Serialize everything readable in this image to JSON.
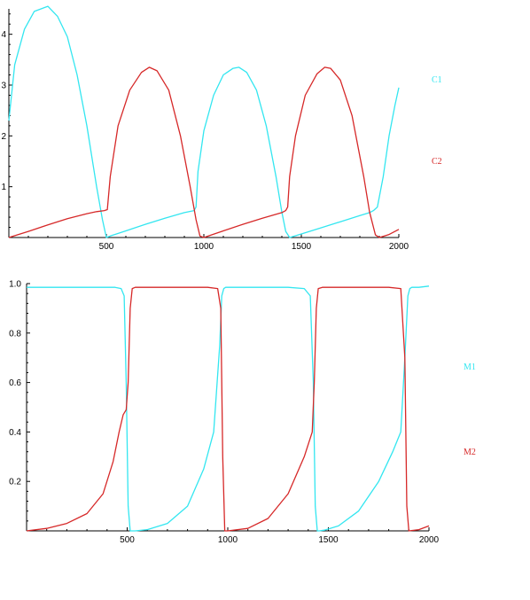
{
  "chart_data": [
    {
      "type": "line",
      "title": "",
      "xlabel": "",
      "ylabel": "",
      "xlim": [
        0,
        2000
      ],
      "ylim": [
        0,
        4.5
      ],
      "xticks": [
        500,
        1000,
        1500,
        2000
      ],
      "yticks": [
        1,
        2,
        3,
        4
      ],
      "grid": false,
      "legend_placement": "right",
      "series": [
        {
          "name": "C1",
          "color": "#33e6f0",
          "x": [
            0,
            30,
            80,
            130,
            200,
            250,
            300,
            350,
            400,
            450,
            480,
            500,
            520,
            600,
            700,
            800,
            900,
            950,
            960,
            970,
            1000,
            1050,
            1100,
            1150,
            1180,
            1220,
            1270,
            1320,
            1370,
            1400,
            1420,
            1440,
            1500,
            1600,
            1700,
            1800,
            1850,
            1870,
            1890,
            1920,
            1950,
            1980,
            2000
          ],
          "y": [
            2.3,
            3.4,
            4.1,
            4.45,
            4.55,
            4.35,
            3.95,
            3.2,
            2.2,
            1.0,
            0.35,
            0.0,
            0.03,
            0.13,
            0.26,
            0.38,
            0.49,
            0.53,
            0.6,
            1.3,
            2.1,
            2.8,
            3.2,
            3.33,
            3.35,
            3.25,
            2.9,
            2.2,
            1.2,
            0.5,
            0.12,
            0.0,
            0.07,
            0.19,
            0.31,
            0.43,
            0.49,
            0.53,
            0.6,
            1.2,
            2.0,
            2.6,
            2.95
          ]
        },
        {
          "name": "C2",
          "color": "#d62828",
          "x": [
            0,
            100,
            200,
            300,
            400,
            450,
            490,
            505,
            520,
            560,
            620,
            680,
            720,
            760,
            820,
            880,
            930,
            960,
            980,
            1000,
            1100,
            1200,
            1300,
            1400,
            1420,
            1430,
            1440,
            1470,
            1520,
            1580,
            1620,
            1650,
            1700,
            1760,
            1820,
            1850,
            1880,
            1900,
            1950,
            2000
          ],
          "y": [
            0.0,
            0.12,
            0.25,
            0.37,
            0.47,
            0.51,
            0.53,
            0.55,
            1.2,
            2.2,
            2.9,
            3.25,
            3.35,
            3.28,
            2.9,
            2.0,
            1.0,
            0.35,
            0.03,
            0.0,
            0.13,
            0.26,
            0.38,
            0.49,
            0.53,
            0.6,
            1.2,
            2.0,
            2.8,
            3.22,
            3.35,
            3.33,
            3.1,
            2.4,
            1.2,
            0.5,
            0.05,
            0.0,
            0.06,
            0.16
          ]
        }
      ]
    },
    {
      "type": "line",
      "title": "",
      "xlabel": "",
      "ylabel": "",
      "xlim": [
        0,
        2000
      ],
      "ylim": [
        0,
        1.0
      ],
      "xticks": [
        500,
        1000,
        1500,
        2000
      ],
      "yticks": [
        0.2,
        0.4,
        0.6,
        0.8,
        1.0
      ],
      "ytick_labels": [
        "0.2",
        "0.4",
        "0.6",
        "0.8",
        "1.0"
      ],
      "grid": false,
      "legend_placement": "right",
      "series": [
        {
          "name": "M1",
          "color": "#33e6f0",
          "x": [
            0,
            300,
            440,
            470,
            485,
            495,
            505,
            515,
            540,
            600,
            700,
            800,
            880,
            930,
            960,
            970,
            980,
            990,
            1000,
            1100,
            1300,
            1380,
            1410,
            1425,
            1435,
            1445,
            1455,
            1480,
            1550,
            1650,
            1750,
            1820,
            1860,
            1880,
            1895,
            1905,
            1915,
            1950,
            2000
          ],
          "y": [
            0.985,
            0.985,
            0.985,
            0.98,
            0.95,
            0.6,
            0.1,
            0.0,
            0.0,
            0.005,
            0.03,
            0.1,
            0.25,
            0.4,
            0.75,
            0.95,
            0.98,
            0.985,
            0.985,
            0.985,
            0.985,
            0.98,
            0.95,
            0.6,
            0.1,
            0.0,
            0.0,
            0.003,
            0.02,
            0.08,
            0.2,
            0.32,
            0.4,
            0.7,
            0.95,
            0.98,
            0.985,
            0.985,
            0.99
          ]
        },
        {
          "name": "M2",
          "color": "#d62828",
          "x": [
            0,
            100,
            200,
            300,
            380,
            430,
            460,
            480,
            495,
            505,
            515,
            525,
            540,
            700,
            900,
            950,
            965,
            975,
            985,
            1000,
            1100,
            1200,
            1300,
            1380,
            1420,
            1430,
            1440,
            1450,
            1470,
            1600,
            1800,
            1860,
            1880,
            1890,
            1900,
            1950,
            2000
          ],
          "y": [
            0.0,
            0.01,
            0.03,
            0.07,
            0.15,
            0.28,
            0.4,
            0.47,
            0.49,
            0.6,
            0.9,
            0.98,
            0.985,
            0.985,
            0.985,
            0.98,
            0.9,
            0.3,
            0.0,
            0.0,
            0.01,
            0.05,
            0.15,
            0.3,
            0.4,
            0.6,
            0.9,
            0.98,
            0.985,
            0.985,
            0.985,
            0.98,
            0.7,
            0.1,
            0.0,
            0.005,
            0.02
          ]
        }
      ]
    }
  ]
}
